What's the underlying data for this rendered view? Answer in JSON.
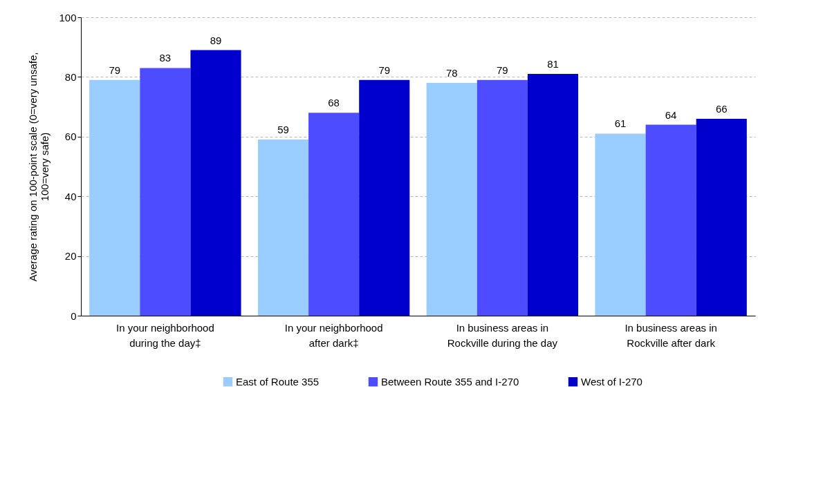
{
  "chart_data": {
    "type": "bar",
    "ylabel": "Average rating on 100-point scale (0=very unsafe, 100=very safe)",
    "categories": [
      "In your neighborhood during the day‡",
      "In your neighborhood after dark‡",
      "In business areas in Rockville during the day",
      "In business areas in Rockville after dark"
    ],
    "series": [
      {
        "name": "East of Route 355",
        "color": "#99ccff",
        "values": [
          79,
          59,
          78,
          61
        ]
      },
      {
        "name": "Between Route 355 and I-270",
        "color": "#4d4dff",
        "values": [
          83,
          68,
          79,
          64
        ]
      },
      {
        "name": "West of I-270",
        "color": "#0000cc",
        "values": [
          89,
          79,
          81,
          66
        ]
      }
    ],
    "ylim": [
      0,
      100
    ],
    "yticks": [
      0,
      20,
      40,
      60,
      80,
      100
    ],
    "grid": "y",
    "legend": "bottom",
    "data_labels": true
  }
}
